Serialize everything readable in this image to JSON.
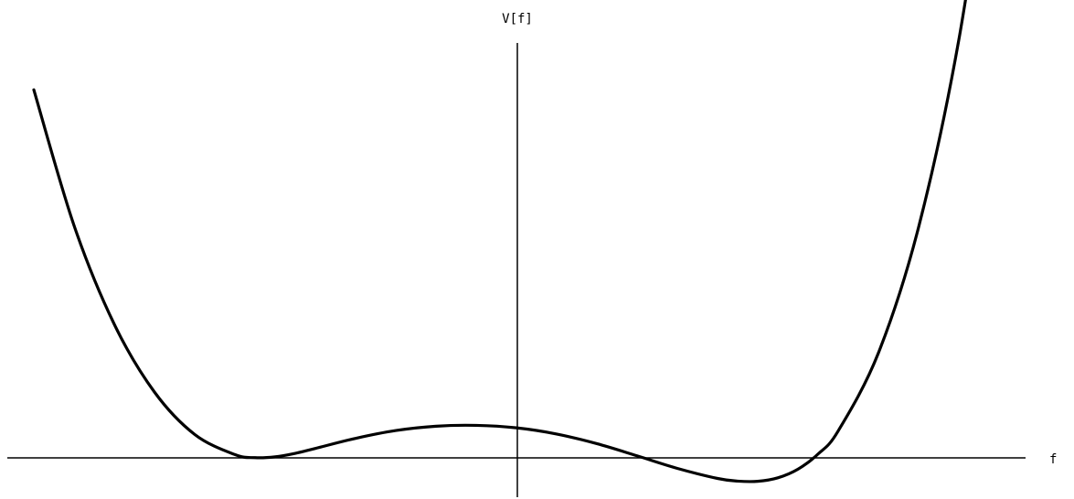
{
  "chart_data": {
    "type": "line",
    "title": "",
    "xlabel": "f",
    "ylabel": "V[f]",
    "grid": false,
    "legend": "none",
    "xlim": [
      -2.5,
      2.5
    ],
    "ylim": [
      -0.2,
      2.0
    ],
    "series": [
      {
        "color": "#000000",
        "x": [
          -2.4,
          -2.2,
          -2.0,
          -1.8,
          -1.6,
          -1.4,
          -1.3,
          -1.2,
          -1.1,
          -1.0,
          -0.8,
          -0.6,
          -0.4,
          -0.2,
          0.0,
          0.2,
          0.4,
          0.6,
          0.8,
          1.0,
          1.1,
          1.2,
          1.3,
          1.4,
          1.5,
          1.6,
          1.8,
          2.0,
          2.2,
          2.4
        ],
        "y": [
          1.79,
          1.13,
          0.65,
          0.32,
          0.114,
          0.016,
          0.001,
          0.005,
          0.022,
          0.046,
          0.095,
          0.133,
          0.154,
          0.158,
          0.146,
          0.116,
          0.069,
          0.01,
          -0.051,
          -0.1,
          -0.113,
          -0.114,
          -0.097,
          -0.055,
          0.019,
          0.131,
          0.51,
          1.122,
          2.033,
          3.317
        ]
      }
    ]
  }
}
